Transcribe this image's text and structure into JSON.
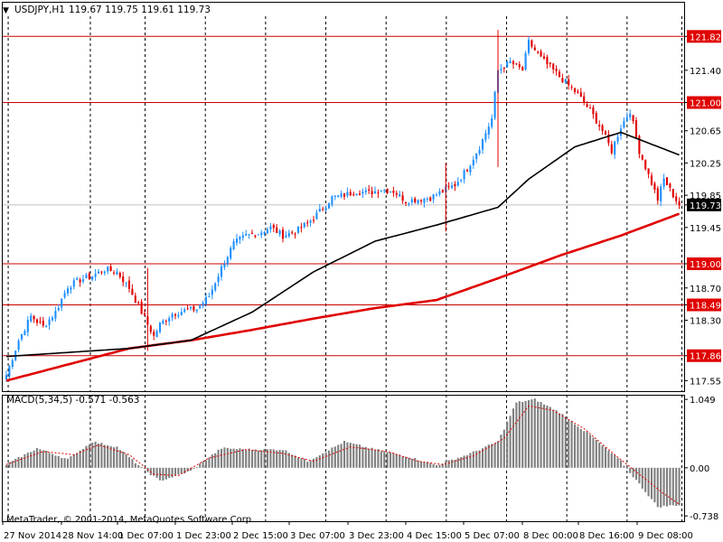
{
  "header": {
    "symbol": "USDJPY,H1",
    "ohlc": "119.67 119.75 119.61 119.73",
    "dropdown_glyph": "▼"
  },
  "macd_header": {
    "label": "MACD(5,34,5) -0.571 -0.563"
  },
  "copyright": "MetaTrader, © 2001-2014, MetaQuotes Software Corp.",
  "colors": {
    "background": "#ffffff",
    "bull_candle": "#1e90ff",
    "bear_candle": "#e00000",
    "ma_slow": "#e00000",
    "ma_fast": "#000000",
    "level_line": "#cc0000",
    "level_label_bg": "#e00000",
    "current_price_bg": "#000000",
    "macd_histogram": "#808080",
    "macd_signal": "#e00000"
  },
  "chart_data": [
    {
      "type": "candlestick",
      "symbol": "USDJPY",
      "timeframe": "H1",
      "y_ticks": [
        "121.82",
        "121.40",
        "121.00",
        "120.65",
        "120.25",
        "119.85",
        "119.73",
        "119.45",
        "119.00",
        "118.70",
        "118.49",
        "118.30",
        "117.86",
        "117.55"
      ],
      "ylim": [
        117.42,
        122.07
      ],
      "x_tick_labels": [
        "27 Nov 2014",
        "28 Nov 14:00",
        "1 Dec 07:00",
        "1 Dec 23:00",
        "2 Dec 15:00",
        "3 Dec 07:00",
        "3 Dec 23:00",
        "4 Dec 15:00",
        "5 Dec 07:00",
        "8 Dec 00:00",
        "8 Dec 16:00",
        "9 Dec 08:00"
      ],
      "horizontal_levels": [
        121.82,
        121.0,
        119.0,
        118.49,
        117.86
      ],
      "current_price": 119.73,
      "legend_position": "top-left",
      "grid": "vertical dashed lines at x ticks",
      "close_anchors": [
        [
          0,
          117.62
        ],
        [
          4,
          118.05
        ],
        [
          8,
          118.35
        ],
        [
          12,
          118.22
        ],
        [
          16,
          118.4
        ],
        [
          20,
          118.72
        ],
        [
          24,
          118.8
        ],
        [
          28,
          118.85
        ],
        [
          32,
          118.93
        ],
        [
          36,
          118.9
        ],
        [
          40,
          118.7
        ],
        [
          44,
          118.4
        ],
        [
          48,
          118.1
        ],
        [
          50,
          118.25
        ],
        [
          54,
          118.38
        ],
        [
          58,
          118.42
        ],
        [
          62,
          118.44
        ],
        [
          66,
          118.6
        ],
        [
          70,
          118.95
        ],
        [
          74,
          119.25
        ],
        [
          78,
          119.35
        ],
        [
          82,
          119.38
        ],
        [
          86,
          119.45
        ],
        [
          90,
          119.35
        ],
        [
          94,
          119.4
        ],
        [
          98,
          119.5
        ],
        [
          102,
          119.65
        ],
        [
          106,
          119.82
        ],
        [
          110,
          119.85
        ],
        [
          114,
          119.9
        ],
        [
          118,
          119.88
        ],
        [
          122,
          119.92
        ],
        [
          126,
          119.9
        ],
        [
          130,
          119.78
        ],
        [
          134,
          119.8
        ],
        [
          138,
          119.82
        ],
        [
          142,
          119.9
        ],
        [
          146,
          119.98
        ],
        [
          150,
          120.18
        ],
        [
          154,
          120.45
        ],
        [
          158,
          120.8
        ],
        [
          160,
          121.4
        ],
        [
          164,
          121.5
        ],
        [
          168,
          121.4
        ],
        [
          170,
          121.75
        ],
        [
          174,
          121.55
        ],
        [
          178,
          121.4
        ],
        [
          182,
          121.25
        ],
        [
          186,
          121.1
        ],
        [
          190,
          120.9
        ],
        [
          194,
          120.65
        ],
        [
          197,
          120.4
        ],
        [
          200,
          120.7
        ],
        [
          203,
          120.9
        ],
        [
          206,
          120.4
        ],
        [
          209,
          120.1
        ],
        [
          212,
          119.8
        ],
        [
          214,
          120.05
        ],
        [
          217,
          119.85
        ],
        [
          219,
          119.73
        ]
      ],
      "ma_fast_anchors": [
        [
          0,
          117.85
        ],
        [
          40,
          117.95
        ],
        [
          60,
          118.05
        ],
        [
          80,
          118.4
        ],
        [
          100,
          118.9
        ],
        [
          120,
          119.28
        ],
        [
          140,
          119.48
        ],
        [
          160,
          119.7
        ],
        [
          170,
          120.05
        ],
        [
          185,
          120.45
        ],
        [
          200,
          120.63
        ],
        [
          219,
          120.35
        ]
      ],
      "ma_slow_anchors": [
        [
          0,
          117.55
        ],
        [
          40,
          117.95
        ],
        [
          60,
          118.05
        ],
        [
          80,
          118.18
        ],
        [
          100,
          118.32
        ],
        [
          120,
          118.45
        ],
        [
          140,
          118.55
        ],
        [
          160,
          118.82
        ],
        [
          180,
          119.1
        ],
        [
          200,
          119.35
        ],
        [
          219,
          119.62
        ]
      ]
    },
    {
      "type": "bar",
      "title": "MACD(5,34,5) -0.571 -0.563",
      "y_ticks": [
        "1.049",
        "0.00",
        "-0.738"
      ],
      "ylim": [
        -0.82,
        1.12
      ],
      "main": -0.571,
      "signal": -0.563,
      "macd_anchors": [
        [
          0,
          0.05
        ],
        [
          10,
          0.3
        ],
        [
          20,
          0.13
        ],
        [
          28,
          0.4
        ],
        [
          36,
          0.32
        ],
        [
          44,
          0.0
        ],
        [
          50,
          -0.2
        ],
        [
          60,
          -0.05
        ],
        [
          70,
          0.3
        ],
        [
          80,
          0.28
        ],
        [
          90,
          0.28
        ],
        [
          98,
          0.1
        ],
        [
          110,
          0.4
        ],
        [
          120,
          0.28
        ],
        [
          130,
          0.18
        ],
        [
          140,
          0.04
        ],
        [
          150,
          0.2
        ],
        [
          160,
          0.4
        ],
        [
          166,
          1.0
        ],
        [
          172,
          1.05
        ],
        [
          180,
          0.85
        ],
        [
          190,
          0.5
        ],
        [
          200,
          0.1
        ],
        [
          206,
          -0.25
        ],
        [
          212,
          -0.6
        ],
        [
          219,
          -0.57
        ]
      ],
      "signal_anchors": [
        [
          0,
          0.05
        ],
        [
          12,
          0.25
        ],
        [
          22,
          0.2
        ],
        [
          30,
          0.35
        ],
        [
          40,
          0.2
        ],
        [
          48,
          -0.1
        ],
        [
          56,
          -0.12
        ],
        [
          66,
          0.15
        ],
        [
          78,
          0.28
        ],
        [
          90,
          0.22
        ],
        [
          100,
          0.1
        ],
        [
          112,
          0.32
        ],
        [
          124,
          0.25
        ],
        [
          134,
          0.1
        ],
        [
          142,
          0.05
        ],
        [
          152,
          0.18
        ],
        [
          162,
          0.45
        ],
        [
          170,
          0.95
        ],
        [
          178,
          0.88
        ],
        [
          188,
          0.6
        ],
        [
          198,
          0.2
        ],
        [
          206,
          -0.1
        ],
        [
          214,
          -0.4
        ],
        [
          219,
          -0.56
        ]
      ]
    }
  ]
}
